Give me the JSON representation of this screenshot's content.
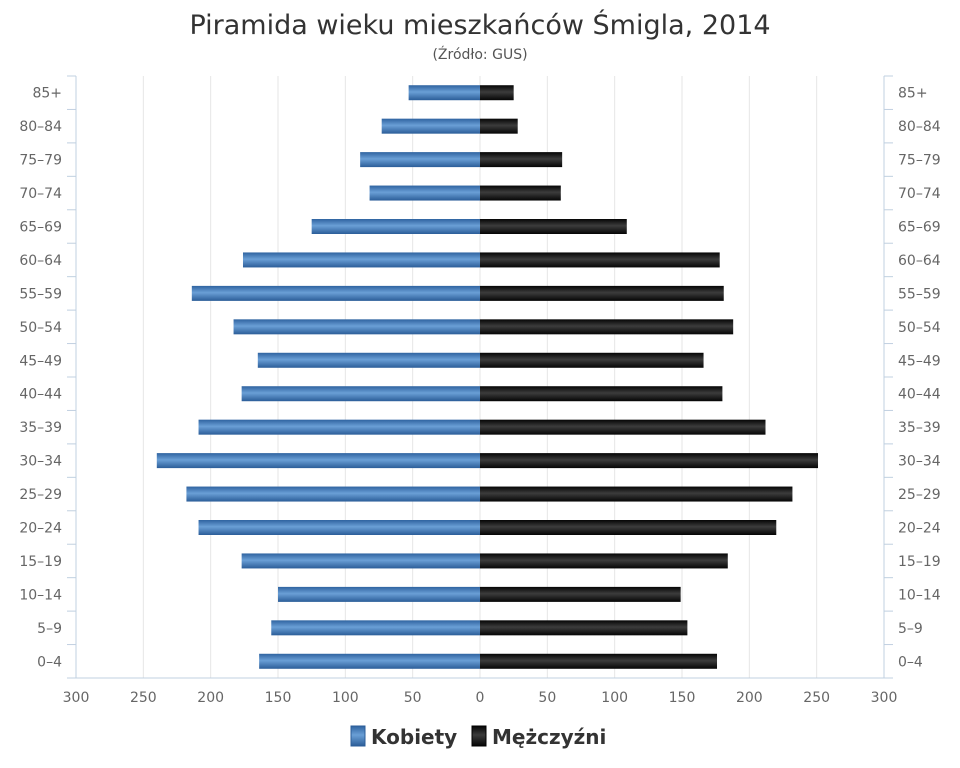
{
  "chart_data": {
    "type": "bar",
    "orientation": "horizontal",
    "layout": "population-pyramid",
    "title": "Piramida wieku mieszkańców Śmigla, 2014",
    "subtitle": "(Źródło: GUS)",
    "categories": [
      "85+",
      "80–84",
      "75–79",
      "70–74",
      "65–69",
      "60–64",
      "55–59",
      "50–54",
      "45–49",
      "40–44",
      "35–39",
      "30–34",
      "25–29",
      "20–24",
      "15–19",
      "10–14",
      "5–9",
      "0–4"
    ],
    "series": [
      {
        "name": "Kobiety",
        "side": "left",
        "color": "#3b74b4",
        "values": [
          53,
          73,
          89,
          82,
          125,
          176,
          214,
          183,
          165,
          177,
          209,
          240,
          218,
          209,
          177,
          150,
          155,
          164
        ]
      },
      {
        "name": "Mężczyźni",
        "side": "right",
        "color": "#1a1a1a",
        "values": [
          25,
          28,
          61,
          60,
          109,
          178,
          181,
          188,
          166,
          180,
          212,
          251,
          232,
          220,
          184,
          149,
          154,
          176
        ]
      }
    ],
    "x_ticks": [
      "300",
      "250",
      "200",
      "150",
      "100",
      "50",
      "0",
      "50",
      "100",
      "150",
      "200",
      "250",
      "300"
    ],
    "xlim": [
      -300,
      300
    ],
    "grid": true,
    "legend_position": "bottom-center"
  }
}
